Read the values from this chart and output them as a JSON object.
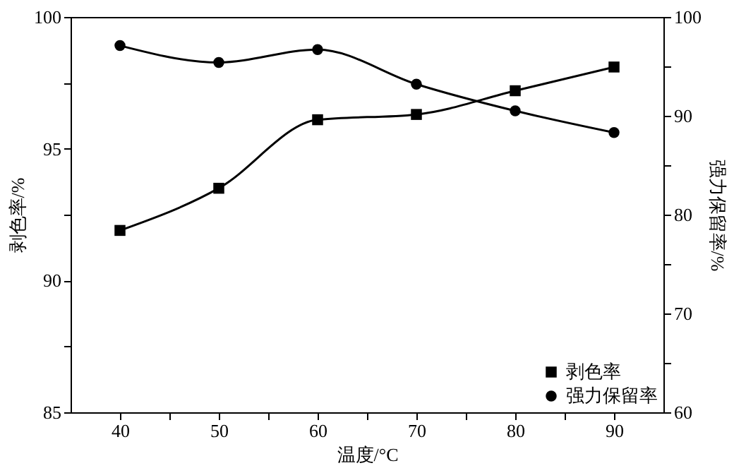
{
  "chart_data": {
    "type": "line",
    "xlabel": "温度/°C",
    "ylabel": "剥色率/%",
    "y2label": "强力保留率/%",
    "x": [
      40,
      50,
      60,
      70,
      80,
      90
    ],
    "series": [
      {
        "name": "剥色率",
        "color": "#000000",
        "marker": "square",
        "values": [
          91.9,
          93.5,
          96.1,
          96.3,
          97.2,
          98.1
        ]
      },
      {
        "name": "强力保留率",
        "color": "#000000",
        "marker": "circle",
        "axis": "y2",
        "values": [
          97.1,
          95.4,
          96.7,
          93.2,
          90.5,
          88.3
        ]
      }
    ],
    "xlim": [
      35,
      95
    ],
    "xticks": [
      40,
      {
        "value": 45,
        "label": null
      },
      50,
      {
        "value": 55,
        "label": null
      },
      60,
      {
        "value": 65,
        "label": null
      },
      70,
      {
        "value": 75,
        "label": null
      },
      80,
      {
        "value": 85,
        "label": null
      },
      90
    ],
    "ylim": [
      85,
      100
    ],
    "yticks": [
      85,
      {
        "value": 87.5,
        "label": null
      },
      90,
      {
        "value": 92.5,
        "label": null
      },
      95,
      {
        "value": 97.5,
        "label": null
      },
      100
    ],
    "y2lim": [
      60,
      100
    ],
    "y2ticks": [
      60,
      {
        "value": 65,
        "label": null
      },
      70,
      {
        "value": 75,
        "label": null
      },
      80,
      {
        "value": 85,
        "label": null
      },
      90,
      {
        "value": 95,
        "label": null
      },
      100
    ],
    "grid": false,
    "legend": "bottom right",
    "line_style": "solid"
  }
}
